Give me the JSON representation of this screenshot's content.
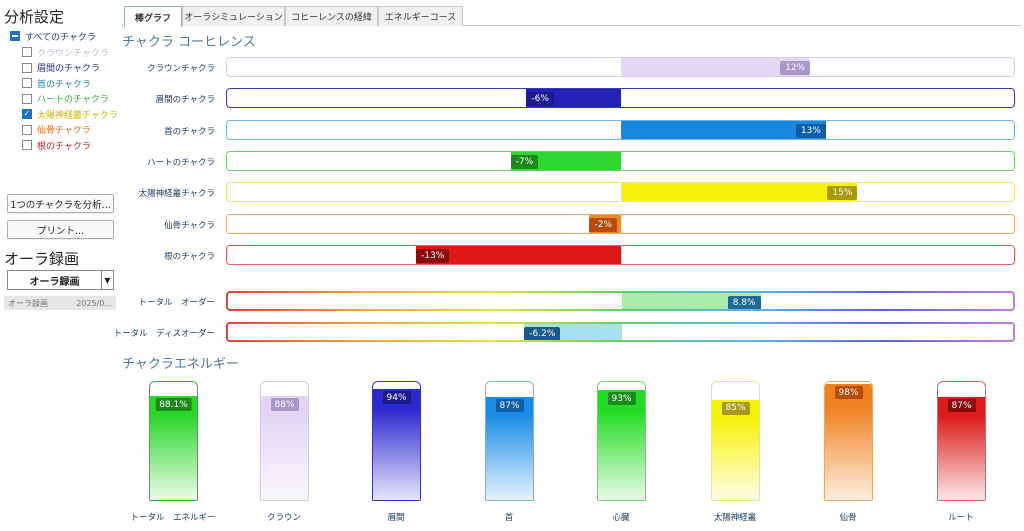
{
  "sidebar": {
    "title": "分析設定",
    "all_label": "すべてのチャクラ",
    "chakras": [
      {
        "label": "クラウンチャクラ",
        "color": "#c9b6e8",
        "checked": false
      },
      {
        "label": "眉間のチャクラ",
        "color": "#2d2ba8",
        "checked": false
      },
      {
        "label": "首のチャクラ",
        "color": "#1a7fd0",
        "checked": false
      },
      {
        "label": "ハートのチャクラ",
        "color": "#2bb82b",
        "checked": false
      },
      {
        "label": "太陽神経叢チャクラ",
        "color": "#c9b400",
        "checked": true
      },
      {
        "label": "仙骨チャクラ",
        "color": "#e06a10",
        "checked": false
      },
      {
        "label": "根のチャクラ",
        "color": "#d01a1a",
        "checked": false
      }
    ],
    "analyze_button": "1つのチャクラを分析...",
    "print_button": "プリント...",
    "aura_title": "オーラ録画",
    "aura_select": "オーラ録画",
    "recording": {
      "name": "オーラ録画",
      "date": "2025/0..."
    }
  },
  "tabs": [
    {
      "label": "棒グラフ",
      "active": true
    },
    {
      "label": "オーラシミュレーション",
      "active": false
    },
    {
      "label": "コヒーレンスの経緯",
      "active": false
    },
    {
      "label": "エネルギーコース",
      "active": false
    }
  ],
  "coherence": {
    "title": "チャクラ コーヒレンス",
    "rows": [
      {
        "label": "クラウンチャクラ",
        "text": "12%",
        "value": 12,
        "color": "#a897c8",
        "fill": "#e4d9f5",
        "border": "#d6cce8"
      },
      {
        "label": "眉間のチャクラ",
        "text": "-6%",
        "value": -6,
        "color": "#1d1a8a",
        "fill": "#2421b8",
        "border": "#3a36b8"
      },
      {
        "label": "首のチャクラ",
        "text": "13%",
        "value": 13,
        "color": "#0b5fa8",
        "fill": "#1a87e0",
        "border": "#6fb4ea"
      },
      {
        "label": "ハートのチャクラ",
        "text": "-7%",
        "value": -7,
        "color": "#1a8a1a",
        "fill": "#2ed62e",
        "border": "#6ad66a"
      },
      {
        "label": "太陽神経叢チャクラ",
        "text": "15%",
        "value": 15,
        "color": "#a89a10",
        "fill": "#f7f20c",
        "border": "#eee27a"
      },
      {
        "label": "仙骨チャクラ",
        "text": "-2%",
        "value": -2,
        "color": "#b84a0a",
        "fill": "#ee8a2a",
        "border": "#e8a86a"
      },
      {
        "label": "根のチャクラ",
        "text": "-13%",
        "value": -13,
        "color": "#8a0a0a",
        "fill": "#e01818",
        "border": "#e06060"
      }
    ],
    "totals": [
      {
        "label": "トータル　オーダー",
        "text": "8.8%",
        "value": 8.8,
        "color": "#1a6a9a",
        "fill": "#a8ecaa"
      },
      {
        "label": "トータル　ディスオーダー",
        "text": "-6.2%",
        "value": -6.2,
        "color": "#1a5a8a",
        "fill": "#a8e0f0"
      }
    ],
    "scale_max": 25
  },
  "energy": {
    "title": "チャクラエネルギー",
    "bars": [
      {
        "label": "トータル　エネルギー",
        "text": "88.1%",
        "value": 88.1,
        "top": "#2bd62b",
        "bottom": "#ecfbea",
        "badge": "#1a8a1a",
        "border": "#2bb82b"
      },
      {
        "label": "クラウン",
        "text": "88%",
        "value": 88,
        "top": "#e2d6f4",
        "bottom": "#faf7fd",
        "badge": "#a897c8",
        "border": "#d6cce8"
      },
      {
        "label": "眉間",
        "text": "94%",
        "value": 94,
        "top": "#2d29d0",
        "bottom": "#e8e6fb",
        "badge": "#1d1a8a",
        "border": "#3a36b8"
      },
      {
        "label": "首",
        "text": "87%",
        "value": 87,
        "top": "#1d8ce6",
        "bottom": "#e6f3fc",
        "badge": "#0b5fa8",
        "border": "#6fb4ea"
      },
      {
        "label": "心臓",
        "text": "93%",
        "value": 93,
        "top": "#22dc22",
        "bottom": "#e9fbe8",
        "badge": "#1a8a1a",
        "border": "#6ad66a"
      },
      {
        "label": "太陽神経叢",
        "text": "85%",
        "value": 85,
        "top": "#f7f20c",
        "bottom": "#fefde8",
        "badge": "#a89a10",
        "border": "#eee27a"
      },
      {
        "label": "仙骨",
        "text": "98%",
        "value": 98,
        "top": "#f0801c",
        "bottom": "#fdeee0",
        "badge": "#b84a0a",
        "border": "#e8a86a"
      },
      {
        "label": "ルート",
        "text": "87%",
        "value": 87,
        "top": "#dc1c1c",
        "bottom": "#fbe6e6",
        "badge": "#8a0a0a",
        "border": "#e06060"
      }
    ]
  }
}
